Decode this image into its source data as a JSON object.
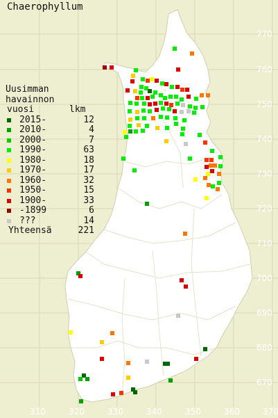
{
  "title": "Chaerophyllum",
  "legend": {
    "heading_line1": "Uusimman",
    "heading_line2": "havainnon",
    "heading_col_left": "vuosi",
    "heading_col_right": "lkm",
    "rows": [
      {
        "label": "2015-",
        "count": "12",
        "color": "#006600"
      },
      {
        "label": "2010-",
        "count": "4",
        "color": "#00a000"
      },
      {
        "label": "2000-",
        "count": "7",
        "color": "#00cc00"
      },
      {
        "label": "1990-",
        "count": "63",
        "color": "#00ee00"
      },
      {
        "label": "1980-",
        "count": "18",
        "color": "#ffff00"
      },
      {
        "label": "1970-",
        "count": "17",
        "color": "#ffcc00"
      },
      {
        "label": "1960-",
        "count": "32",
        "color": "#ff7700"
      },
      {
        "label": "1950-",
        "count": "15",
        "color": "#ff3300"
      },
      {
        "label": "1900-",
        "count": "33",
        "color": "#dd0000"
      },
      {
        "label": "-1899",
        "count": "6",
        "color": "#990000"
      },
      {
        "label": "???",
        "count": "14",
        "color": "#c8c8c8"
      }
    ],
    "total_label": "Yhteensä",
    "total_count": "221"
  },
  "axes": {
    "x_ticks": [
      "310",
      "320",
      "330",
      "340",
      "350",
      "360",
      "370"
    ],
    "y_ticks": [
      "770",
      "760",
      "750",
      "740",
      "730",
      "720",
      "710",
      "700",
      "690",
      "680",
      "670"
    ]
  }
}
